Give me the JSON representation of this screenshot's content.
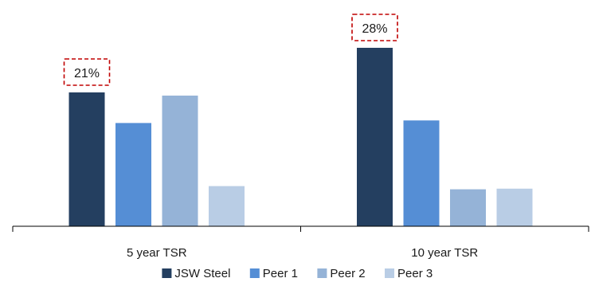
{
  "chart_data": {
    "type": "bar",
    "categories": [
      "5 year TSR",
      "10 year TSR"
    ],
    "series": [
      {
        "name": "JSW Steel",
        "color": "#243f60",
        "values": [
          21,
          28
        ]
      },
      {
        "name": "Peer 1",
        "color": "#558ed5",
        "values": [
          16.2,
          16.6
        ]
      },
      {
        "name": "Peer 2",
        "color": "#95b3d7",
        "values": [
          20.5,
          5.8
        ]
      },
      {
        "name": "Peer 3",
        "color": "#b9cde5",
        "values": [
          6.3,
          5.9
        ]
      }
    ],
    "data_labels": [
      {
        "series": "JSW Steel",
        "category": "5 year TSR",
        "text": "21%"
      },
      {
        "series": "JSW Steel",
        "category": "10 year TSR",
        "text": "28%"
      }
    ],
    "ylim": [
      0,
      34.5
    ],
    "legend_position": "bottom",
    "grid": false,
    "label_box_color": "#c00000"
  }
}
